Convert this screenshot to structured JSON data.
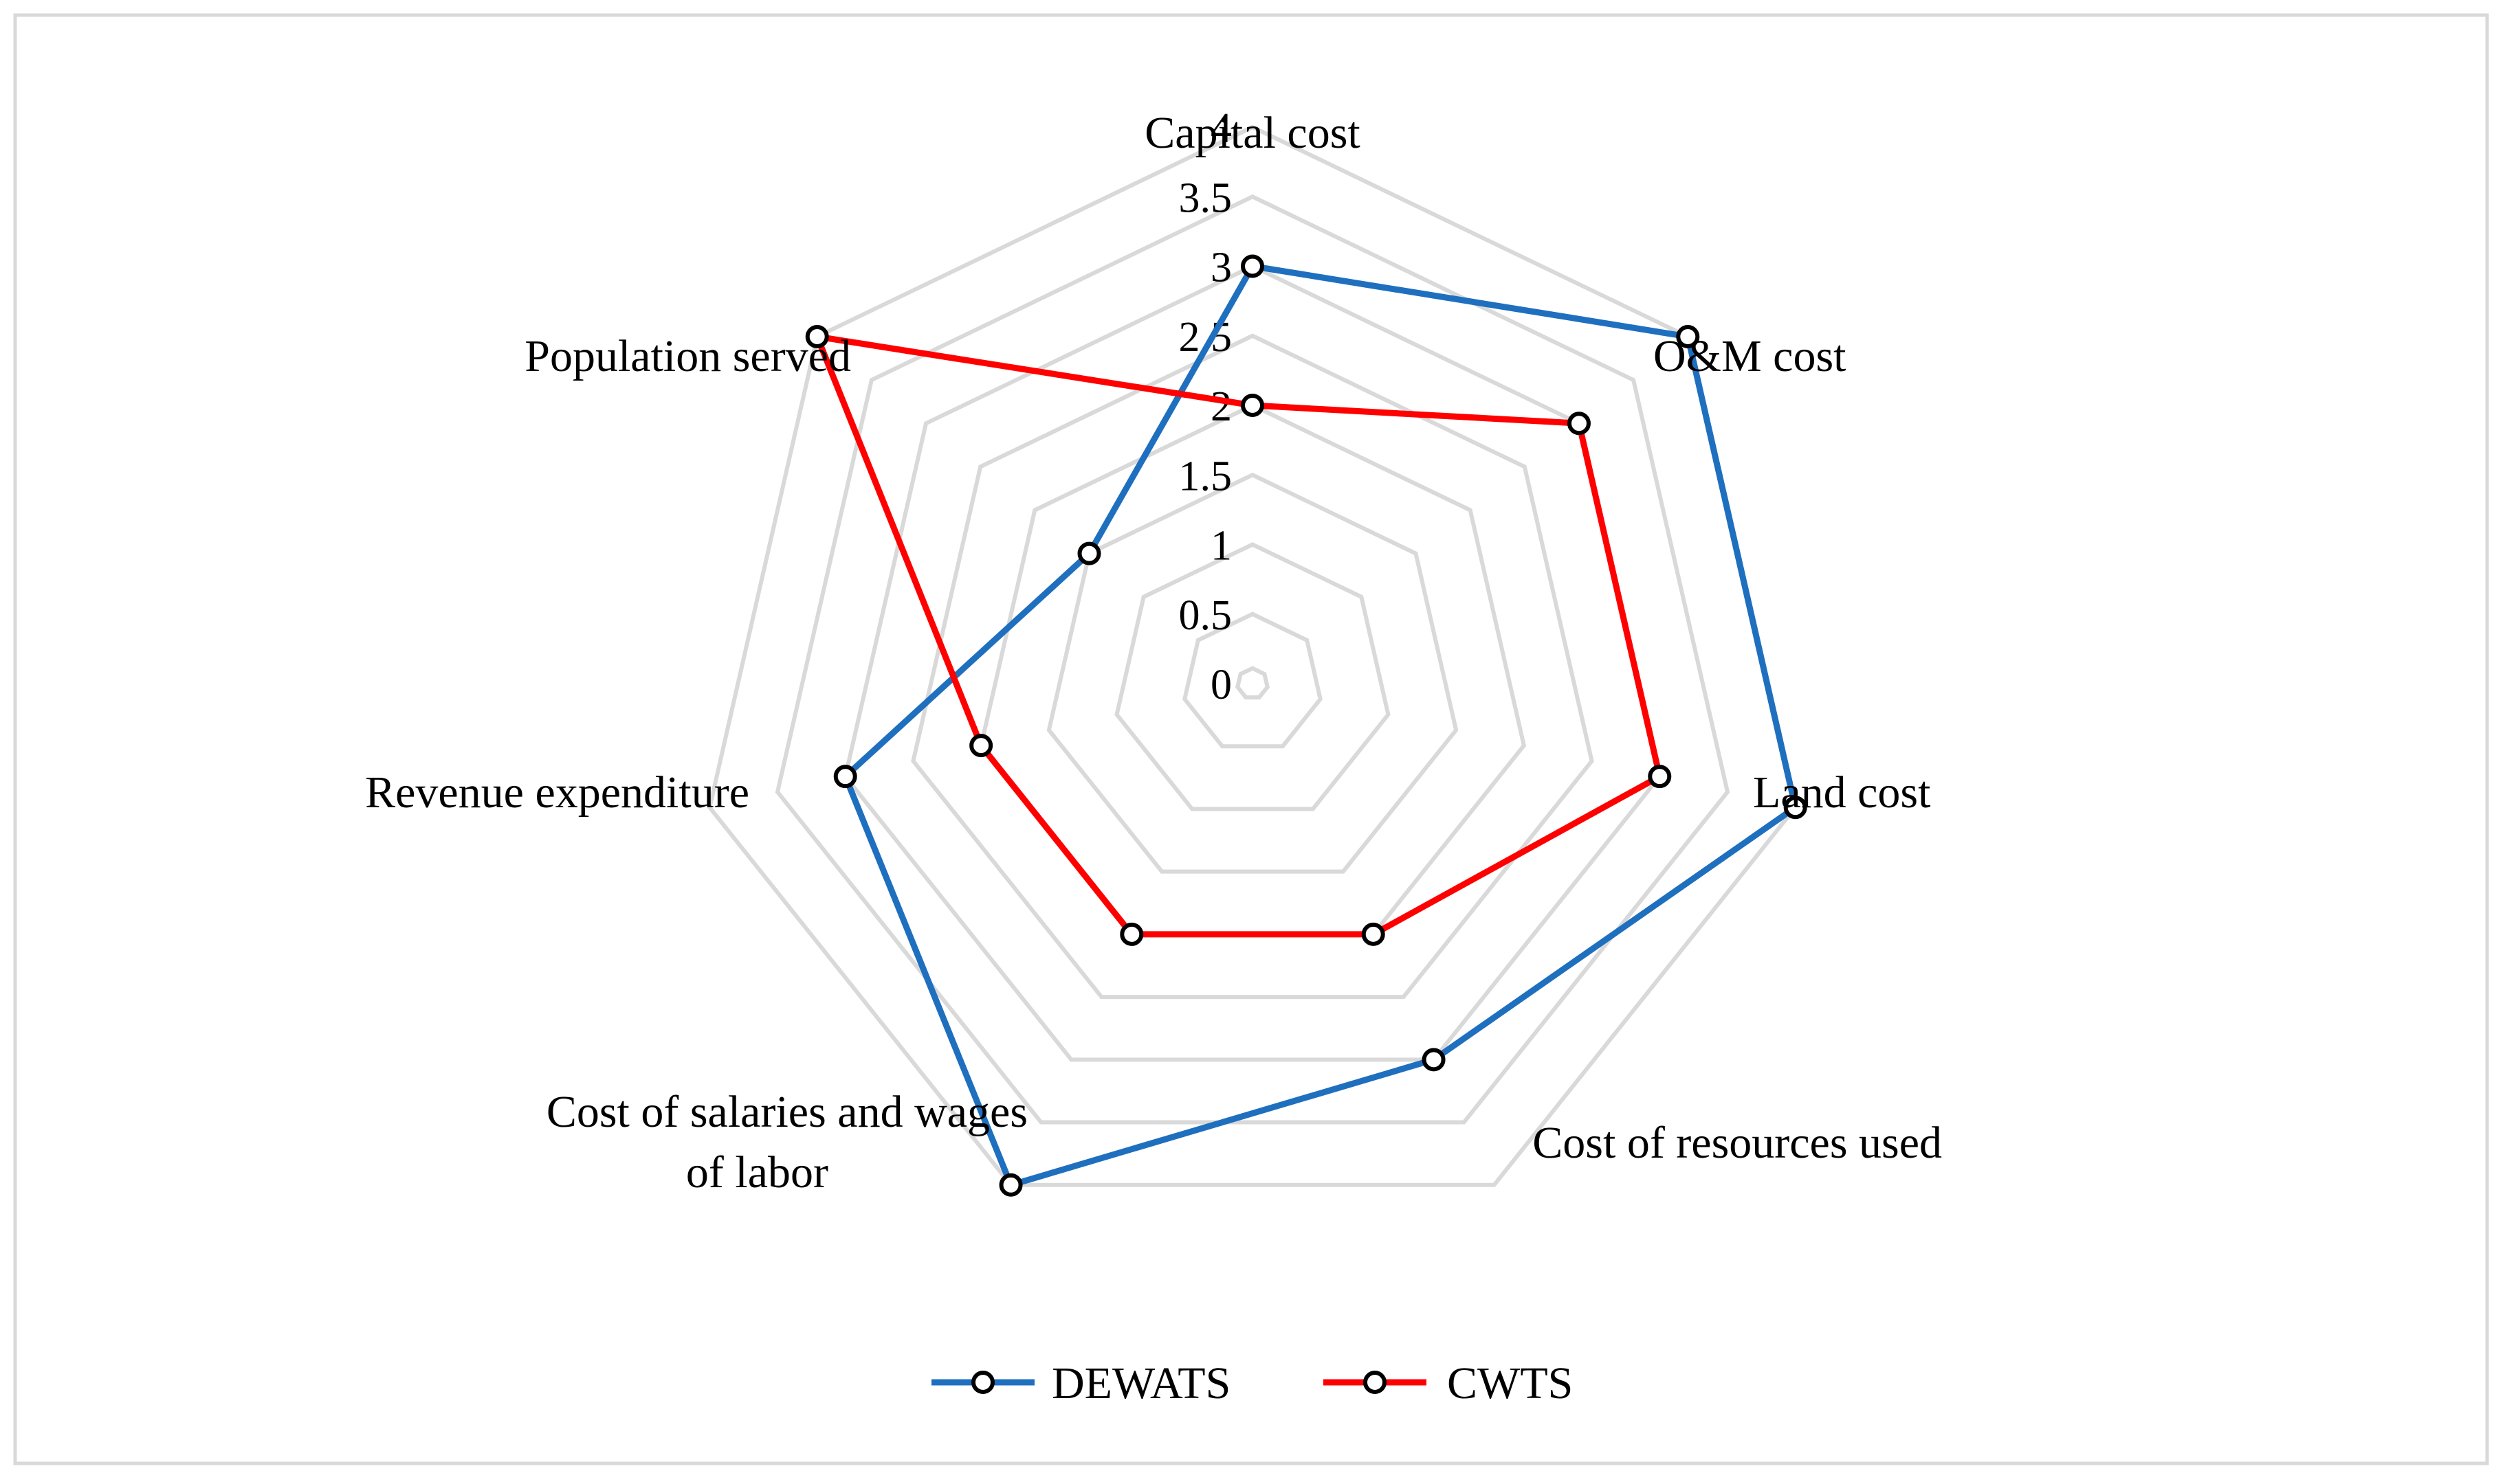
{
  "chart_data": {
    "type": "radar",
    "title": "",
    "categories": [
      "Capital cost",
      "O&M cost",
      "Land cost",
      "Cost of resources used",
      "Cost of salaries and wages of labor",
      "Revenue expenditure",
      "Population served"
    ],
    "category_label_lines": [
      [
        "Capital cost"
      ],
      [
        "O&M cost"
      ],
      [
        "Land cost"
      ],
      [
        "Cost of resources used"
      ],
      [
        "Cost of salaries and  wages",
        "of labor"
      ],
      [
        "Revenue expenditure"
      ],
      [
        "Population served"
      ]
    ],
    "ticks": [
      "0",
      "0.5",
      "1",
      "1.5",
      "2",
      "2.5",
      "3",
      "3.5",
      "4"
    ],
    "rlim": [
      0,
      4
    ],
    "grid": true,
    "legend_position": "bottom",
    "series": [
      {
        "name": "DEWATS",
        "values": [
          3,
          4,
          4,
          3,
          4,
          3,
          1.5
        ]
      },
      {
        "name": "CWTS",
        "values": [
          2,
          3,
          3,
          2,
          2,
          2,
          4
        ]
      }
    ],
    "colors": {
      "DEWATS": "#1f6fbf",
      "CWTS": "#ff0000",
      "grid": "#d9d9d9",
      "marker_edge": "#000000",
      "frame": "#d9d9d9"
    }
  }
}
